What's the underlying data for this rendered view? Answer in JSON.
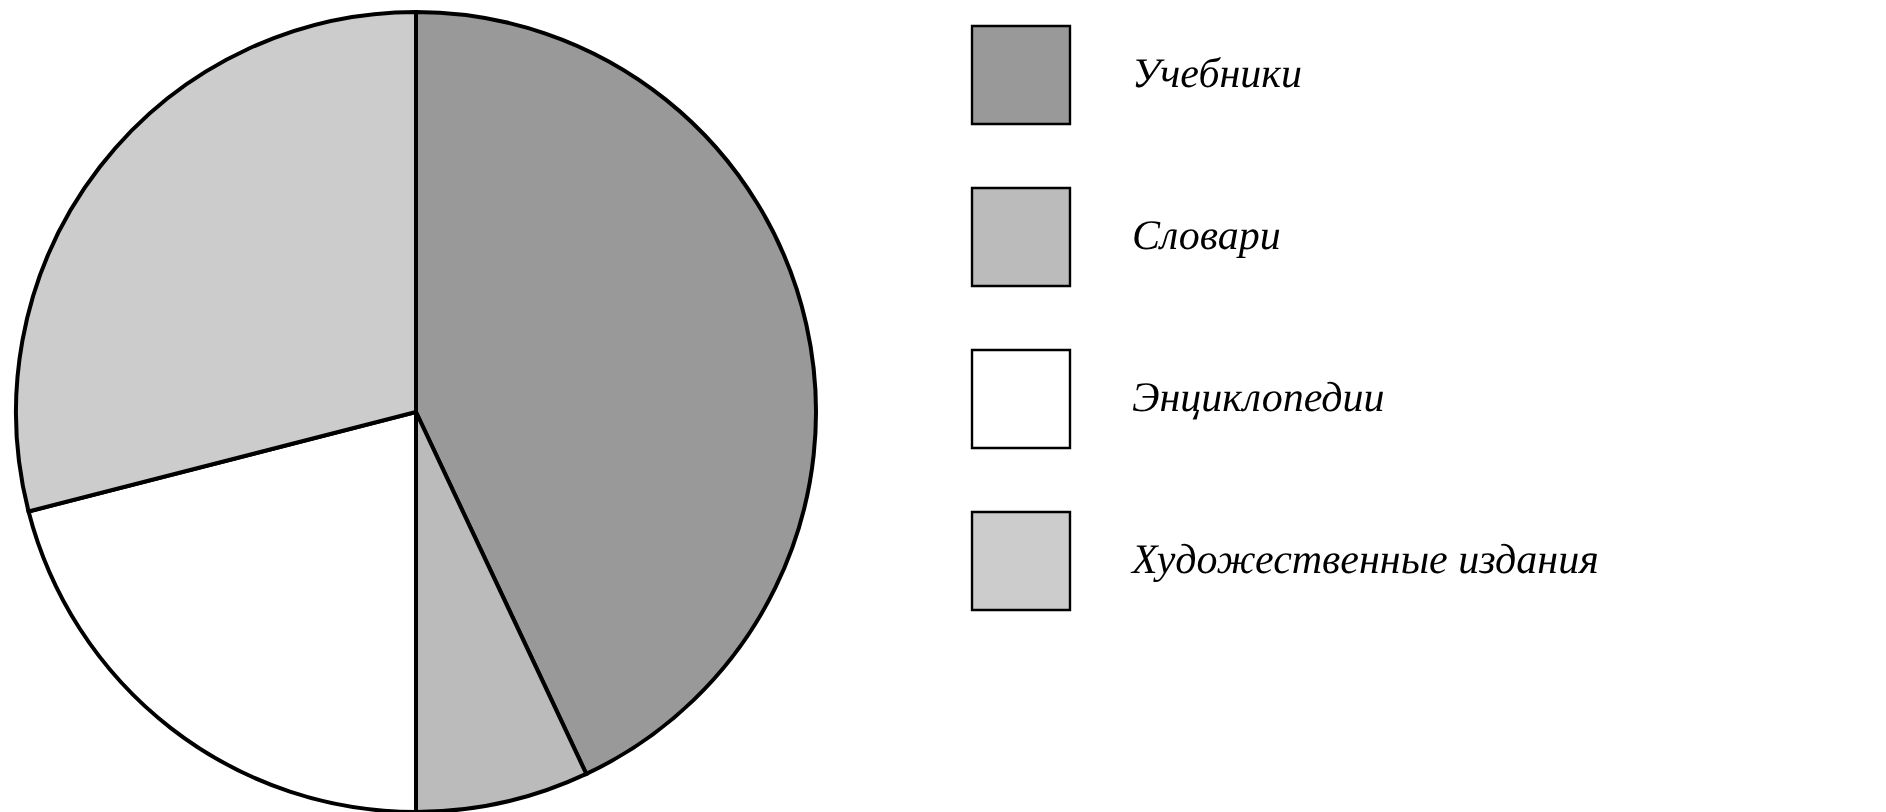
{
  "chart_data": {
    "type": "pie",
    "categories": [
      "Учебники",
      "Словари",
      "Энциклопедии",
      "Художественные издания"
    ],
    "values": [
      43,
      7,
      21,
      29
    ],
    "colors": [
      "#999999",
      "#bbbbbb",
      "#ffffff",
      "#cccccc"
    ],
    "legend": "right"
  }
}
